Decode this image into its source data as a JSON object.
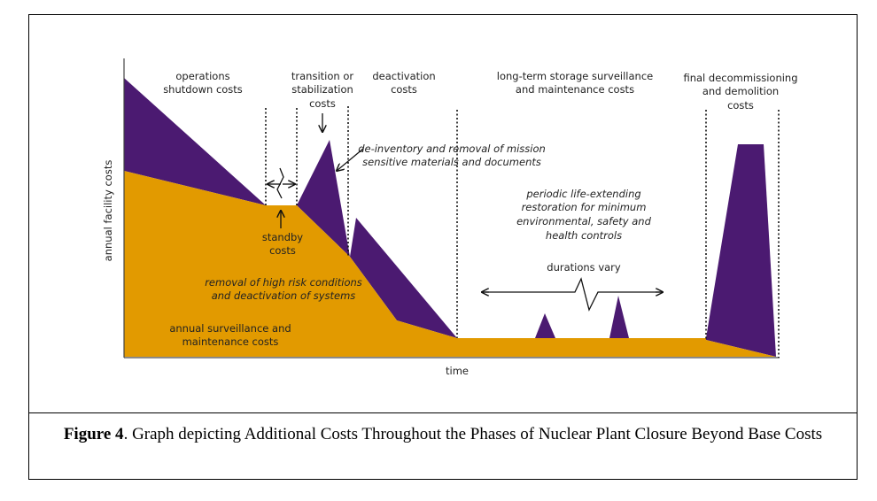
{
  "diagram": {
    "y_axis_label": "annual facility costs",
    "x_axis_label": "time",
    "phases": [
      {
        "lines": [
          "operations",
          "shutdown costs"
        ]
      },
      {
        "lines": [
          "transition or",
          "stabilization",
          "costs"
        ]
      },
      {
        "lines": [
          "deactivation",
          "costs"
        ]
      },
      {
        "lines": [
          "long-term storage surveillance",
          "and maintenance costs"
        ]
      },
      {
        "lines": [
          "final decommissioning",
          "and demolition",
          "costs"
        ]
      }
    ],
    "annotations": {
      "standby": [
        "standby",
        "costs"
      ],
      "deinventory": [
        "de-inventory and removal of mission",
        "sensitive materials and documents"
      ],
      "restoration": [
        "periodic life-extending",
        "restoration for minimum",
        "environmental, safety and",
        "health controls"
      ],
      "durations": "durations vary",
      "removal": [
        "removal of high risk conditions",
        "and deactivation of systems"
      ],
      "baseline": [
        "annual surveillance and",
        "maintenance costs"
      ]
    },
    "colors": {
      "base": "#E29A00",
      "additional": "#4B1A71"
    }
  },
  "caption": {
    "label": "Figure 4",
    "text": ". Graph depicting Additional Costs Throughout the Phases of Nuclear Plant Closure Beyond Base Costs"
  }
}
